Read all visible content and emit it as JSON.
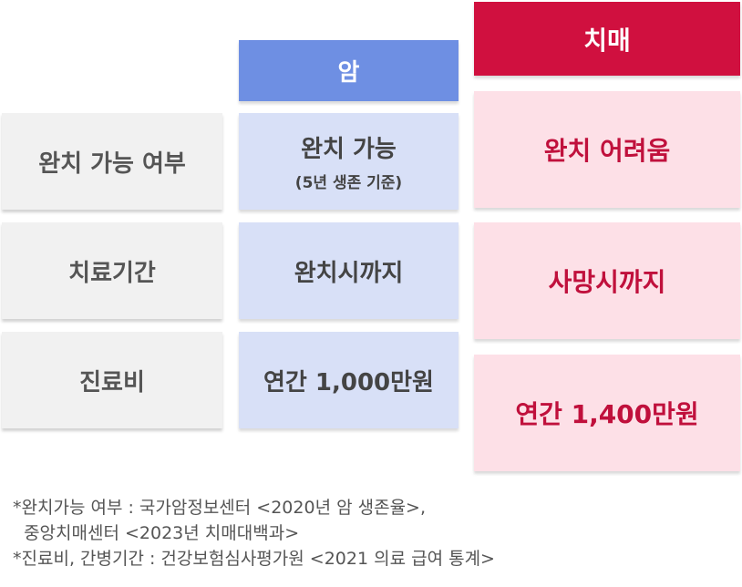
{
  "columns": {
    "cancer": "암",
    "dementia": "치매"
  },
  "rows": [
    {
      "label": "완치 가능 여부",
      "cancer": "완치 가능",
      "cancer_sub": "(5년 생존 기준)",
      "dementia": "완치 어려움"
    },
    {
      "label": "치료기간",
      "cancer": "완치시까지",
      "dementia": "사망시까지"
    },
    {
      "label": "진료비",
      "cancer": "연간 1,000만원",
      "dementia": "연간 1,400만원"
    }
  ],
  "notes": [
    "*완치가능 여부 : 국가암정보센터  <2020년 암 생존율>,",
    "  중앙치매센터 <2023년 치매대백과>",
    "*진료비, 간병기간 : 건강보험심사평가원 <2021 의료 급여 통계>"
  ],
  "colors": {
    "cancer_header": "#6e8fe3",
    "cancer_cell": "#d8e0f7",
    "dementia_header": "#d0103f",
    "dementia_cell": "#fde0e7",
    "label_cell": "#f1f1f1"
  }
}
